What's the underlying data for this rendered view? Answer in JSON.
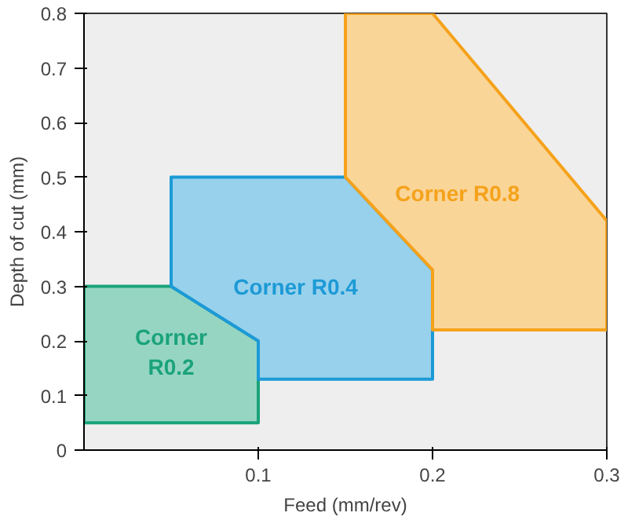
{
  "chart_data": {
    "type": "area",
    "xlabel": "Feed (mm/rev)",
    "ylabel": "Depth of cut (mm)",
    "xlim": [
      0,
      0.3
    ],
    "ylim": [
      0,
      0.8
    ],
    "xticks": [
      0.1,
      0.2,
      0.3
    ],
    "yticks": [
      0,
      0.1,
      0.2,
      0.3,
      0.4,
      0.5,
      0.6,
      0.7,
      0.8
    ],
    "grid": false,
    "series": [
      {
        "name": "Corner\nR0.2",
        "color": "#1aa37a",
        "x": [
          0,
          0,
          0.05,
          0.1,
          0.1
        ],
        "values": [
          0.05,
          0.3,
          0.3,
          0.2,
          0.05
        ]
      },
      {
        "name": "Corner R0.4",
        "color": "#1c9ad6",
        "x": [
          0.05,
          0.05,
          0.15,
          0.2,
          0.2,
          0.1,
          0.1
        ],
        "values": [
          0.3,
          0.5,
          0.5,
          0.33,
          0.13,
          0.13,
          0.2
        ]
      },
      {
        "name": "Corner R0.8",
        "color": "#f5a21b",
        "x": [
          0.15,
          0.15,
          0.2,
          0.3,
          0.3,
          0.2,
          0.2
        ],
        "values": [
          0.5,
          0.8,
          0.8,
          0.42,
          0.22,
          0.22,
          0.33
        ]
      }
    ]
  }
}
